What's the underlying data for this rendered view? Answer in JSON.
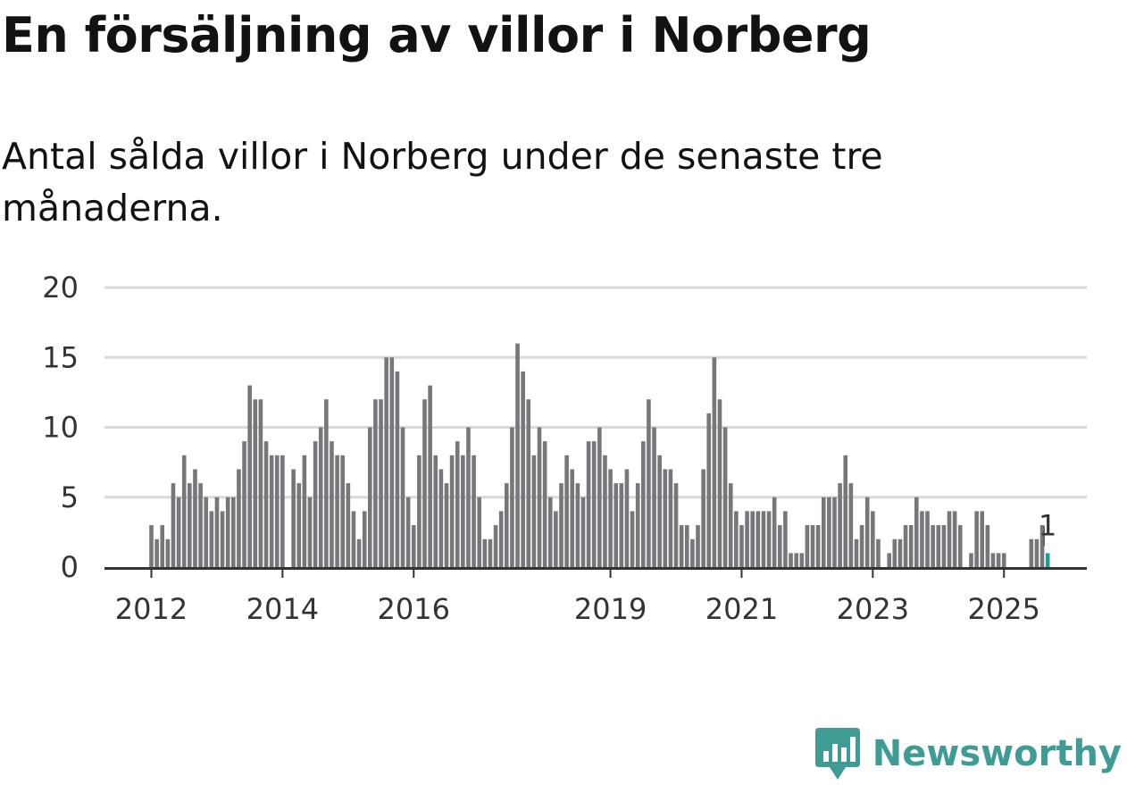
{
  "header": {
    "title": "En försäljning av villor i Norberg",
    "subtitle": "Antal sålda villor i Norberg under de senaste tre månaderna."
  },
  "brand": {
    "name": "Newsworthy",
    "icon": "newsworthy-logo-icon",
    "color": "#3e9c94"
  },
  "colors": {
    "bar": "#76767b",
    "highlight": "#1b9e93",
    "grid": "#d9d9d9",
    "axis": "#333333"
  },
  "chart_data": {
    "type": "bar",
    "start": "2012-01",
    "frequency": "monthly",
    "values": [
      3,
      2,
      3,
      2,
      6,
      5,
      8,
      6,
      7,
      6,
      5,
      4,
      5,
      4,
      5,
      5,
      7,
      9,
      13,
      12,
      12,
      9,
      8,
      8,
      8,
      0,
      7,
      6,
      8,
      5,
      9,
      10,
      12,
      9,
      8,
      8,
      6,
      4,
      2,
      4,
      10,
      12,
      12,
      15,
      15,
      14,
      10,
      5,
      3,
      8,
      12,
      13,
      8,
      7,
      6,
      8,
      9,
      8,
      10,
      8,
      5,
      2,
      2,
      3,
      4,
      6,
      10,
      16,
      14,
      12,
      8,
      10,
      9,
      5,
      4,
      6,
      8,
      7,
      6,
      5,
      9,
      9,
      10,
      8,
      7,
      6,
      6,
      7,
      4,
      6,
      9,
      12,
      10,
      8,
      7,
      7,
      6,
      3,
      3,
      2,
      3,
      7,
      11,
      15,
      12,
      10,
      6,
      4,
      3,
      4,
      4,
      4,
      4,
      4,
      5,
      3,
      4,
      1,
      1,
      1,
      3,
      3,
      3,
      5,
      5,
      5,
      6,
      8,
      6,
      2,
      3,
      5,
      4,
      2,
      0,
      1,
      2,
      2,
      3,
      3,
      5,
      4,
      4,
      3,
      3,
      3,
      4,
      4,
      3,
      0,
      1,
      4,
      4,
      3,
      1,
      1,
      1,
      0,
      0,
      0,
      0,
      2,
      2,
      3,
      1
    ],
    "highlight_last": true,
    "annotation": "1",
    "ylim": [
      0,
      20
    ],
    "yticks": [
      "0",
      "5",
      "10",
      "15",
      "20"
    ],
    "xticks": [
      "2012",
      "2014",
      "2016",
      "2019",
      "2021",
      "2023",
      "2025"
    ],
    "xtick_years": [
      2012,
      2014,
      2016,
      2019,
      2021,
      2023,
      2025
    ],
    "grid": true,
    "xlabel": "",
    "ylabel": ""
  }
}
